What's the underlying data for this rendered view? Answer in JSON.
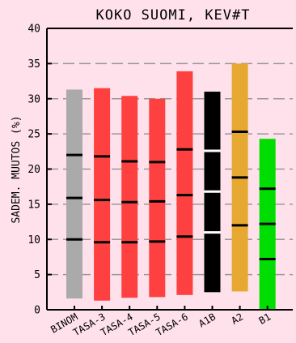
{
  "chart_data": {
    "type": "bar",
    "title": "KOKO SUOMI, KEV#T",
    "ylabel": "SADEM. MUUTOS (%)",
    "xlabel": "",
    "ylim": [
      0,
      40
    ],
    "yticks": [
      0,
      5,
      10,
      15,
      20,
      25,
      30,
      35,
      40
    ],
    "grid": true,
    "categories": [
      "BINOM",
      "TASA-3",
      "TASA-4",
      "TASA-5",
      "TASA-6",
      "A1B",
      "A2",
      "B1"
    ],
    "bars": [
      {
        "label": "BINOM",
        "color": "#aaaaaa",
        "low": 1.6,
        "high": 31.3,
        "markers": [
          10.0,
          15.9,
          22.0
        ],
        "marker_color": "#000000"
      },
      {
        "label": "TASA-3",
        "color": "#ff4040",
        "low": 1.3,
        "high": 31.5,
        "markers": [
          9.6,
          15.6,
          21.8
        ],
        "marker_color": "#000000"
      },
      {
        "label": "TASA-4",
        "color": "#ff4040",
        "low": 1.7,
        "high": 30.4,
        "markers": [
          9.6,
          15.3,
          21.1
        ],
        "marker_color": "#000000"
      },
      {
        "label": "TASA-5",
        "color": "#ff4040",
        "low": 1.8,
        "high": 30.0,
        "markers": [
          9.7,
          15.4,
          21.0
        ],
        "marker_color": "#000000"
      },
      {
        "label": "TASA-6",
        "color": "#ff4040",
        "low": 2.1,
        "high": 33.9,
        "markers": [
          10.4,
          16.3,
          22.8
        ],
        "marker_color": "#000000"
      },
      {
        "label": "A1B",
        "color": "#000000",
        "low": 2.5,
        "high": 31.0,
        "markers": [
          11.0,
          16.8,
          22.6
        ],
        "marker_color": "#ffffff"
      },
      {
        "label": "A2",
        "color": "#e6a830",
        "low": 2.6,
        "high": 35.0,
        "markers": [
          12.0,
          18.8,
          25.3
        ],
        "marker_color": "#000000"
      },
      {
        "label": "B1",
        "color": "#00dd00",
        "low": 0.0,
        "high": 24.3,
        "markers": [
          7.2,
          12.2,
          17.2
        ],
        "marker_color": "#000000"
      }
    ],
    "colors": {
      "background": "#ffe1ec",
      "grid": "#999999",
      "axis": "#000000"
    }
  }
}
